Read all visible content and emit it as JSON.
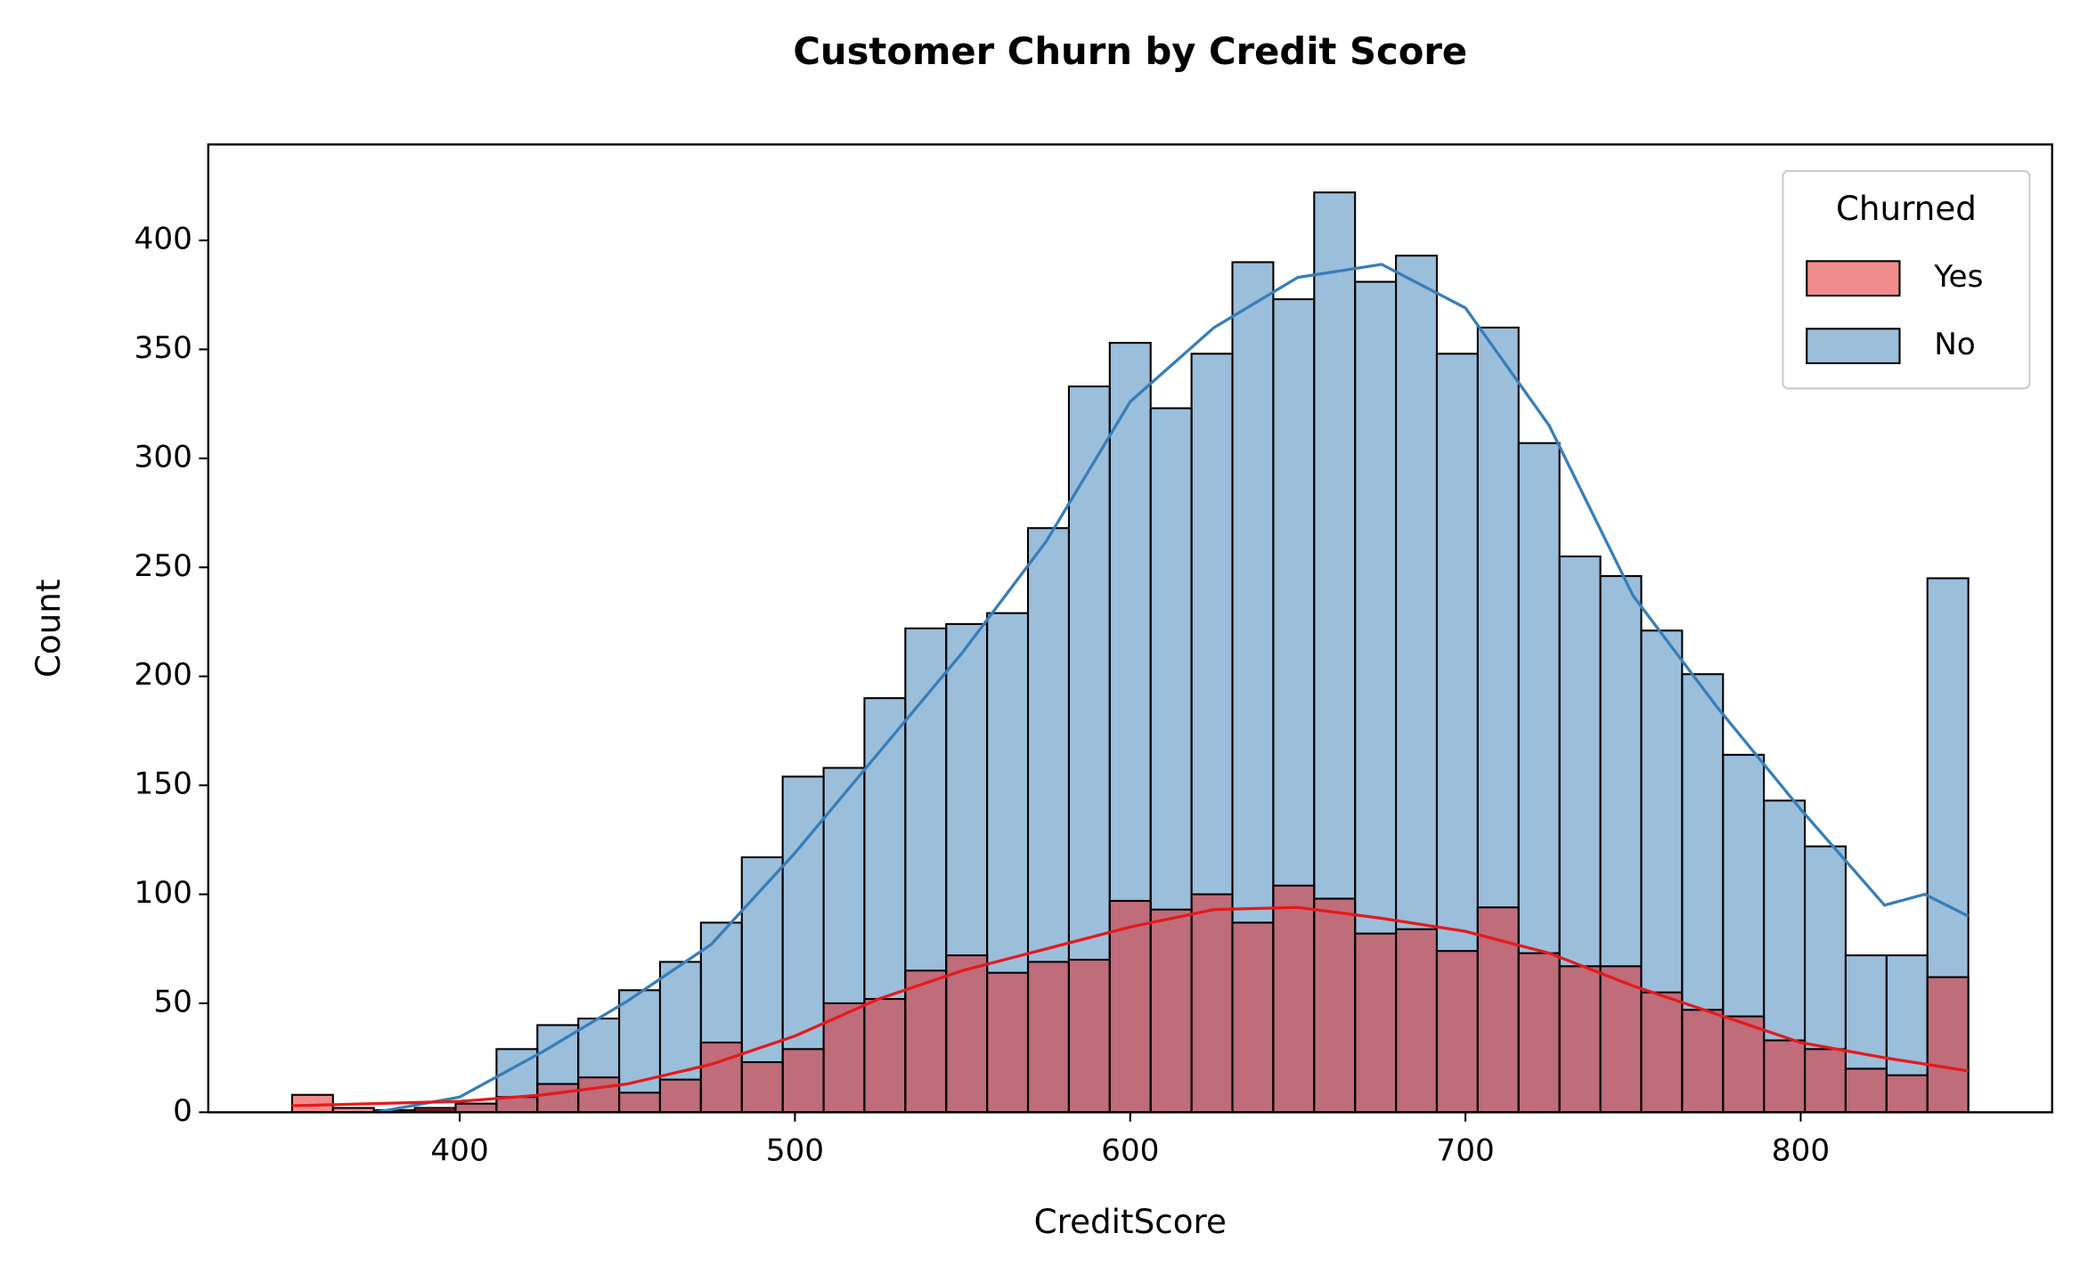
{
  "chart_data": {
    "type": "histogram",
    "title": "Customer Churn by Credit Score",
    "x_label": "CreditScore",
    "y_label": "Count",
    "bins": [
      350,
      362.2,
      374.39,
      386.59,
      398.78,
      410.98,
      423.17,
      435.37,
      447.56,
      459.76,
      471.95,
      484.15,
      496.34,
      508.54,
      520.73,
      532.93,
      545.12,
      557.32,
      569.51,
      581.71,
      593.9,
      606.1,
      618.29,
      630.49,
      642.68,
      654.88,
      667.07,
      679.27,
      691.46,
      703.66,
      715.85,
      728.05,
      740.24,
      752.44,
      764.63,
      776.83,
      789.02,
      801.22,
      813.41,
      825.61,
      837.8,
      850
    ],
    "series": [
      {
        "name": "No",
        "color": "#377eb8",
        "values": [
          0,
          0,
          0,
          1,
          4,
          29,
          40,
          43,
          56,
          69,
          87,
          117,
          154,
          158,
          190,
          222,
          224,
          229,
          268,
          333,
          353,
          323,
          348,
          390,
          373,
          422,
          381,
          393,
          348,
          360,
          307,
          255,
          246,
          221,
          201,
          164,
          143,
          122,
          72,
          72,
          245
        ],
        "kde_x": [
          375,
          400,
          425,
          450,
          475,
          500,
          525,
          550,
          575,
          600,
          625,
          650,
          675,
          700,
          725,
          750,
          775,
          800,
          825,
          837,
          850
        ],
        "kde_y": [
          0,
          7,
          28,
          51,
          77,
          119,
          165,
          211,
          262,
          326,
          360,
          383,
          389,
          369,
          315,
          237,
          186,
          139,
          95,
          100,
          90
        ]
      },
      {
        "name": "Yes",
        "color": "#e41a1c",
        "values": [
          8,
          2,
          1,
          2,
          4,
          7,
          13,
          16,
          9,
          15,
          32,
          23,
          29,
          50,
          52,
          65,
          72,
          64,
          69,
          70,
          97,
          93,
          100,
          87,
          104,
          98,
          82,
          84,
          74,
          94,
          73,
          67,
          67,
          55,
          47,
          44,
          33,
          29,
          20,
          17,
          62
        ],
        "kde_x": [
          350,
          400,
          425,
          450,
          475,
          500,
          525,
          550,
          575,
          600,
          625,
          650,
          675,
          700,
          725,
          750,
          775,
          800,
          825,
          850
        ],
        "kde_y": [
          3,
          5,
          8,
          13,
          22,
          35,
          52,
          65,
          75,
          85,
          93,
          94,
          89,
          83,
          73,
          58,
          45,
          32,
          25,
          19
        ]
      }
    ],
    "alpha": 0.5,
    "legend_title": "Churned",
    "legend_order": [
      1,
      0
    ],
    "legend_position": "upper right",
    "xlim": [
      325,
      875
    ],
    "xticks": [
      400,
      500,
      600,
      700,
      800
    ],
    "ylim": [
      0,
      444
    ],
    "yticks": [
      0,
      50,
      100,
      150,
      200,
      250,
      300,
      350,
      400
    ]
  }
}
